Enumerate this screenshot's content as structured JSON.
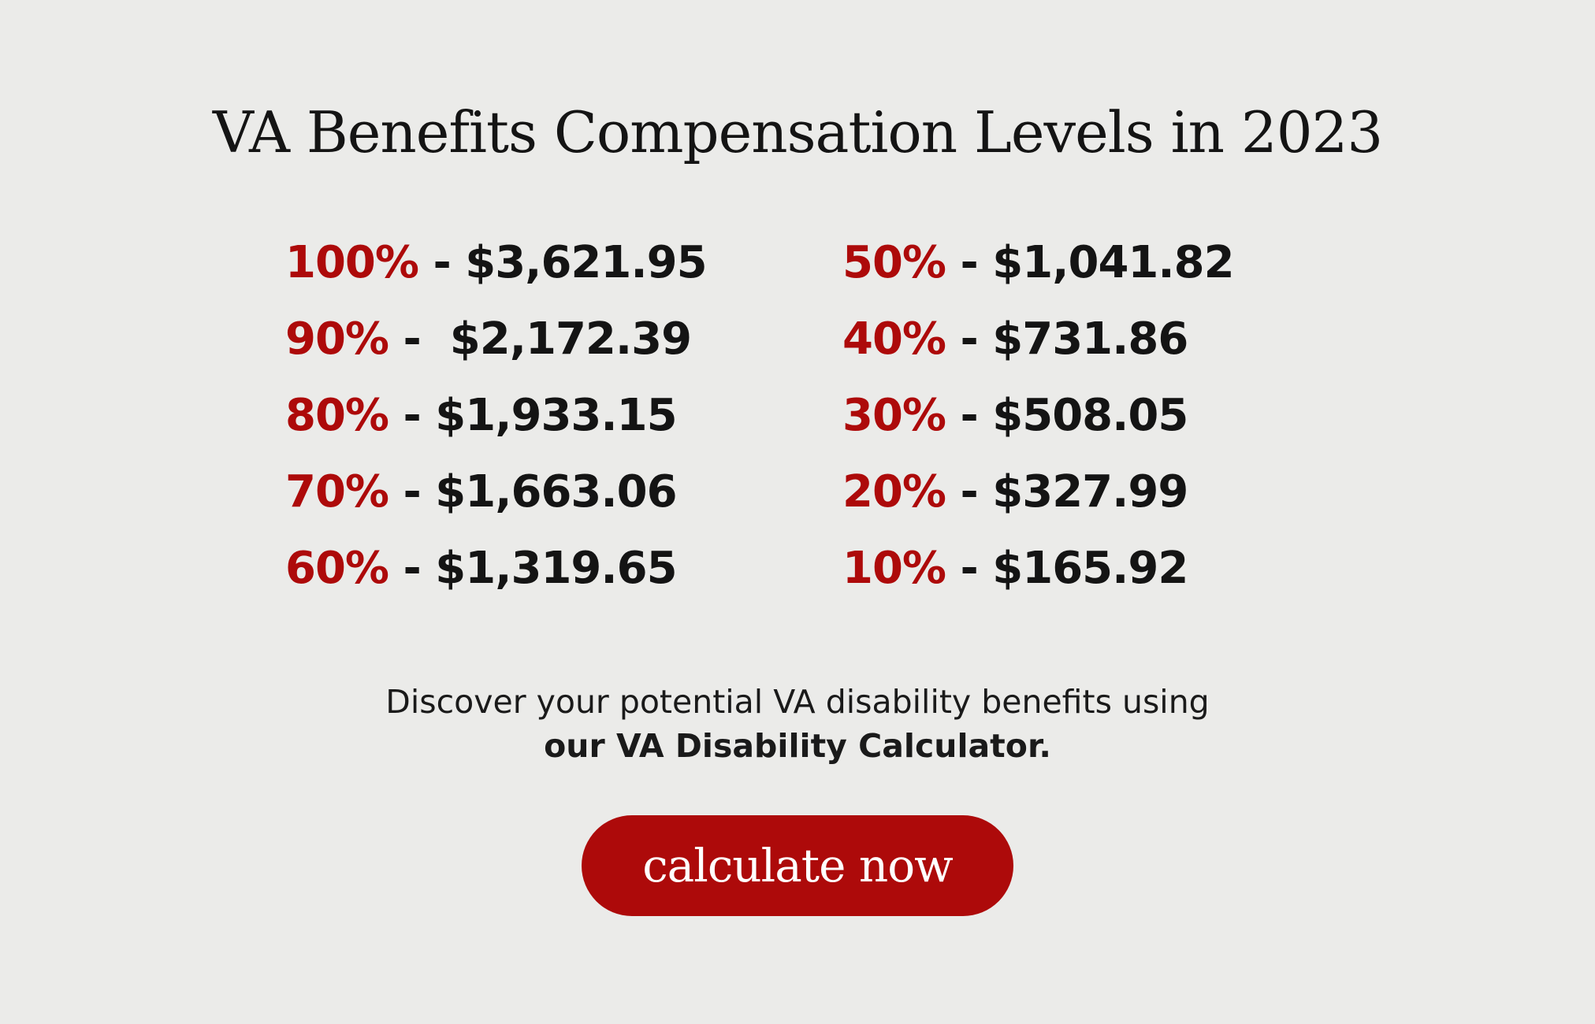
{
  "title": "VA Benefits Compensation Levels in 2023",
  "rates": {
    "left": [
      {
        "pct": "100%",
        "sep": " - ",
        "amount": "$3,621.95"
      },
      {
        "pct": "90%",
        "sep": " -  ",
        "amount": "$2,172.39"
      },
      {
        "pct": "80%",
        "sep": " - ",
        "amount": "$1,933.15"
      },
      {
        "pct": "70%",
        "sep": " - ",
        "amount": "$1,663.06"
      },
      {
        "pct": "60%",
        "sep": " - ",
        "amount": "$1,319.65"
      }
    ],
    "right": [
      {
        "pct": "50%",
        "sep": " - ",
        "amount": "$1,041.82"
      },
      {
        "pct": "40%",
        "sep": " - ",
        "amount": "$731.86"
      },
      {
        "pct": "30%",
        "sep": " - ",
        "amount": "$508.05"
      },
      {
        "pct": "20%",
        "sep": " - ",
        "amount": "$327.99"
      },
      {
        "pct": "10%",
        "sep": " - ",
        "amount": "$165.92"
      }
    ]
  },
  "discover": {
    "line1": "Discover your potential VA disability benefits using",
    "line2": "our VA Disability Calculator."
  },
  "cta": {
    "label": "calculate now"
  },
  "colors": {
    "background": "#ebebe9",
    "accent": "#ad0a0a",
    "text": "#141414"
  }
}
